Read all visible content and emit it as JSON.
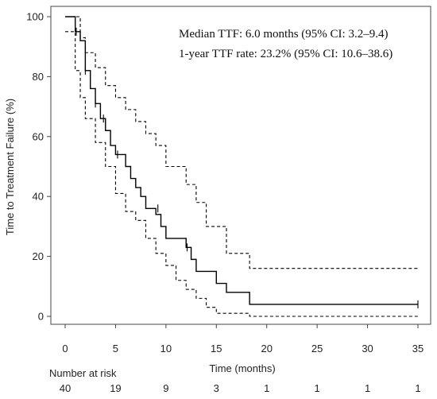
{
  "chart_data": {
    "type": "line",
    "title": "",
    "xlabel": "Time (months)",
    "ylabel": "Time to Treatment Failure (%)",
    "xlim": [
      0,
      35
    ],
    "ylim": [
      0,
      100
    ],
    "x_ticks": [
      0,
      5,
      10,
      15,
      20,
      25,
      30,
      35
    ],
    "y_ticks": [
      0,
      20,
      40,
      60,
      80,
      100
    ],
    "grid": false,
    "annotations": [
      "Median TTF: 6.0 months (95% CI: 3.2–9.4)",
      "1-year TTF rate: 23.2% (95% CI: 10.6–38.6)"
    ],
    "series": [
      {
        "style": "solid",
        "color": "#000000",
        "x": [
          0,
          1,
          1.5,
          2,
          2.5,
          3,
          3.5,
          4,
          4.5,
          5,
          6,
          6.5,
          7,
          7.5,
          8,
          8.5,
          9,
          9.5,
          10,
          11,
          12,
          12.5,
          13,
          15,
          16,
          18.3,
          35
        ],
        "y": [
          100,
          95,
          92,
          82,
          76,
          71,
          66,
          62,
          57,
          54,
          50,
          46,
          43,
          40,
          36,
          36,
          34,
          30,
          26,
          26,
          23,
          19,
          15,
          11,
          8,
          4,
          4
        ],
        "censored": [
          [
            1.1,
            95
          ],
          [
            2.0,
            82
          ],
          [
            3.0,
            71
          ],
          [
            3.8,
            66
          ],
          [
            5.2,
            54
          ],
          [
            9.2,
            36
          ],
          [
            12.1,
            23
          ],
          [
            35,
            4
          ]
        ]
      },
      {
        "style": "dashed",
        "color": "#000000",
        "x": [
          0,
          1.5,
          2,
          3,
          4,
          5,
          6,
          7,
          8,
          9,
          10,
          12,
          13,
          14,
          16,
          18.3,
          35
        ],
        "y": [
          100,
          93,
          88,
          83,
          77,
          73,
          69,
          65,
          61,
          57,
          50,
          44,
          38,
          30,
          21,
          16,
          16
        ]
      },
      {
        "style": "dashed",
        "color": "#000000",
        "x": [
          0,
          1,
          1.5,
          2,
          3,
          4,
          5,
          6,
          7,
          8,
          9,
          10,
          11,
          12,
          13,
          14,
          15,
          18.3,
          35
        ],
        "y": [
          95,
          82,
          73,
          66,
          58,
          50,
          41,
          35,
          32,
          26,
          21,
          17,
          12,
          9,
          6,
          3,
          1,
          0,
          0
        ]
      }
    ],
    "risk_table": {
      "label": "Number at risk",
      "times": [
        0,
        5,
        10,
        15,
        20,
        25,
        30,
        35
      ],
      "counts": [
        "40",
        "19",
        "9",
        "3",
        "1",
        "1",
        "1",
        "1"
      ]
    }
  }
}
